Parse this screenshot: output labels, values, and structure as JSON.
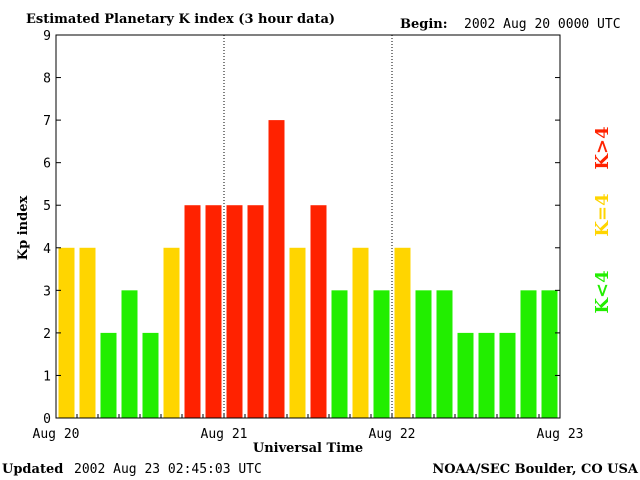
{
  "chart_data": {
    "type": "bar",
    "title": "Estimated Planetary K index (3 hour data)",
    "begin_label": "Begin:",
    "begin_value": "2002 Aug 20 0000 UTC",
    "xlabel": "Universal Time",
    "ylabel": "Kp index",
    "ylim": [
      0,
      9
    ],
    "yticks": [
      "0",
      "1",
      "2",
      "3",
      "4",
      "5",
      "6",
      "7",
      "8",
      "9"
    ],
    "day_labels": [
      "Aug 20",
      "Aug 21",
      "Aug 22",
      "Aug 23"
    ],
    "values": [
      4,
      4,
      2,
      3,
      2,
      4,
      5,
      5,
      5,
      5,
      7,
      4,
      5,
      3,
      4,
      3,
      4,
      3,
      3,
      2,
      2,
      2,
      3,
      3
    ],
    "legend": [
      {
        "label": "K<4",
        "color": "#22ee00"
      },
      {
        "label": "K=4",
        "color": "#ffd500"
      },
      {
        "label": "K>4",
        "color": "#ff2200"
      }
    ],
    "colors": {
      "low": "#22ee00",
      "equal": "#ffd500",
      "high": "#ff2200"
    }
  },
  "footer": {
    "updated_label": "Updated",
    "updated_value": "2002 Aug 23 02:45:03 UTC",
    "source": "NOAA/SEC Boulder, CO USA"
  }
}
